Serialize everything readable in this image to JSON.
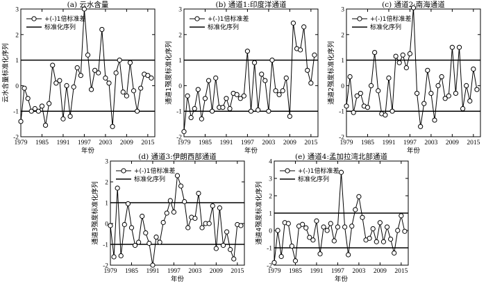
{
  "figure": {
    "x_ticks": [
      "1979",
      "1985",
      "1991",
      "1997",
      "2003",
      "2009",
      "2015"
    ],
    "x_axis_label": "年份"
  },
  "chart_data": [
    {
      "type": "line",
      "title": "(a) 云水含量",
      "ylabel": "云水含量标准化序列",
      "xlabel": "年份",
      "xlim": [
        1979,
        2017
      ],
      "ylim": [
        -2,
        3
      ],
      "y_ticks": [
        "-2",
        "-1",
        "0",
        "1",
        "2",
        "3"
      ],
      "legend": [
        "+(-)1倍标准差",
        "标准化序列"
      ],
      "legend_position": "top-left",
      "std_lines": [
        1,
        -1
      ],
      "series": [
        {
          "name": "标准化序列",
          "x": [
            1979,
            1980,
            1981,
            1982,
            1983,
            1984,
            1985,
            1986,
            1987,
            1988,
            1989,
            1990,
            1991,
            1992,
            1993,
            1994,
            1995,
            1996,
            1997,
            1998,
            1999,
            2000,
            2001,
            2002,
            2003,
            2004,
            2005,
            2006,
            2007,
            2008,
            2009,
            2010,
            2011,
            2012,
            2013,
            2014,
            2015,
            2016
          ],
          "values": [
            -1.4,
            -0.1,
            -0.5,
            -1.0,
            -0.9,
            -1.0,
            -0.8,
            -1.55,
            -0.7,
            0.8,
            0.1,
            0.2,
            -1.3,
            0.0,
            -1.2,
            -0.05,
            0.7,
            0.4,
            3.0,
            1.2,
            -0.15,
            0.6,
            0.5,
            2.2,
            0.3,
            0.1,
            -1.6,
            0.5,
            1.0,
            -0.25,
            -0.4,
            0.9,
            -0.2,
            -1.0,
            -0.1,
            0.45,
            0.4,
            0.3
          ]
        }
      ]
    },
    {
      "type": "line",
      "title": "(b) 通道1:印度洋通道",
      "ylabel": "通道1强度标准化序列",
      "xlabel": "年份",
      "xlim": [
        1979,
        2017
      ],
      "ylim": [
        -2,
        3
      ],
      "y_ticks": [
        "-2",
        "-1",
        "0",
        "1",
        "2",
        "3"
      ],
      "legend": [
        "+(-)1倍标准差",
        "标准化序列"
      ],
      "legend_position": "top-left",
      "std_lines": [
        1,
        -1
      ],
      "series": [
        {
          "name": "标准化序列",
          "x": [
            1979,
            1980,
            1981,
            1982,
            1983,
            1984,
            1985,
            1986,
            1987,
            1988,
            1989,
            1990,
            1991,
            1992,
            1993,
            1994,
            1995,
            1996,
            1997,
            1998,
            1999,
            2000,
            2001,
            2002,
            2003,
            2004,
            2005,
            2006,
            2007,
            2008,
            2009,
            2010,
            2011,
            2012,
            2013,
            2014,
            2015,
            2016
          ],
          "values": [
            -1.8,
            -0.4,
            -1.25,
            -0.9,
            -0.15,
            -1.3,
            -0.5,
            0.2,
            -1.0,
            0.3,
            -0.85,
            -0.85,
            -0.5,
            -0.9,
            -0.3,
            -0.35,
            -0.5,
            -0.4,
            1.35,
            -1.0,
            0.9,
            -0.95,
            0.45,
            0.2,
            -1.0,
            1.0,
            -0.2,
            -0.35,
            -0.2,
            0.3,
            -1.2,
            2.45,
            1.45,
            1.4,
            2.3,
            0.6,
            0.1,
            1.2
          ]
        }
      ]
    },
    {
      "type": "line",
      "title": "(c) 通道2:南海通道",
      "ylabel": "通道2强度标准化序列",
      "xlabel": "年份",
      "xlim": [
        1979,
        2017
      ],
      "ylim": [
        -2,
        3
      ],
      "y_ticks": [
        "-2",
        "-1",
        "0",
        "1",
        "2",
        "3"
      ],
      "legend": [
        "+(-)1倍标准差",
        "标准化序列"
      ],
      "legend_position": "top-left",
      "std_lines": [
        1,
        -1
      ],
      "series": [
        {
          "name": "标准化序列",
          "x": [
            1979,
            1980,
            1981,
            1982,
            1983,
            1984,
            1985,
            1986,
            1987,
            1988,
            1989,
            1990,
            1991,
            1992,
            1993,
            1994,
            1995,
            1996,
            1997,
            1998,
            1999,
            2000,
            2001,
            2002,
            2003,
            2004,
            2005,
            2006,
            2007,
            2008,
            2009,
            2010,
            2011,
            2012,
            2013,
            2014,
            2015,
            2016
          ],
          "values": [
            -0.8,
            0.35,
            -1.05,
            -0.4,
            -0.3,
            -0.8,
            -0.85,
            0.0,
            1.3,
            -0.2,
            -1.1,
            -1.15,
            0.3,
            -1.0,
            1.15,
            0.9,
            1.2,
            0.7,
            1.25,
            3.05,
            -0.3,
            -1.6,
            -0.7,
            0.6,
            -0.3,
            -1.35,
            0.0,
            0.35,
            -0.5,
            -0.4,
            1.5,
            -0.3,
            1.5,
            -0.9,
            0.0,
            -0.6,
            0.65,
            -0.15
          ]
        }
      ]
    },
    {
      "type": "line",
      "title": "(d) 通道3:伊朗西部通道",
      "ylabel": "通道3强度标准化序列",
      "xlabel": "年份",
      "xlim": [
        1979,
        2017
      ],
      "ylim": [
        -2,
        3
      ],
      "y_ticks": [
        "-2",
        "-1",
        "0",
        "1",
        "2",
        "3"
      ],
      "legend": [
        "+(-)1倍标准差",
        "标准化序列"
      ],
      "legend_position": "top-left",
      "std_lines": [
        1,
        -1
      ],
      "series": [
        {
          "name": "标准化序列",
          "x": [
            1979,
            1980,
            1981,
            1982,
            1983,
            1984,
            1985,
            1986,
            1987,
            1988,
            1989,
            1990,
            1991,
            1992,
            1993,
            1994,
            1995,
            1996,
            1997,
            1998,
            1999,
            2000,
            2001,
            2002,
            2003,
            2004,
            2005,
            2006,
            2007,
            2008,
            2009,
            2010,
            2011,
            2012,
            2013,
            2014,
            2015,
            2016
          ],
          "values": [
            -0.1,
            -1.6,
            1.7,
            -1.55,
            -0.05,
            0.95,
            -0.2,
            -1.05,
            -0.9,
            0.35,
            -0.45,
            -0.95,
            -2.0,
            -0.65,
            -0.9,
            0.05,
            0.5,
            1.1,
            0.55,
            2.3,
            1.8,
            1.05,
            -0.2,
            0.3,
            0.25,
            1.45,
            -0.2,
            0.0,
            0.0,
            0.85,
            -1.2,
            0.75,
            -1.05,
            -0.4,
            -1.25,
            -1.7,
            -0.05,
            -0.1
          ]
        }
      ]
    },
    {
      "type": "line",
      "title": "(e) 通道4:孟加拉湾北部通道",
      "ylabel": "通道4强度标准化序列",
      "xlabel": "年份",
      "xlim": [
        1979,
        2017
      ],
      "ylim": [
        -2,
        4
      ],
      "y_ticks": [
        "-2",
        "-1",
        "0",
        "1",
        "2",
        "3",
        "4"
      ],
      "legend": [
        "+(-)1倍标准差",
        "标准化序列"
      ],
      "legend_position": "top-left",
      "std_lines": [
        1,
        -1
      ],
      "series": [
        {
          "name": "标准化序列",
          "x": [
            1979,
            1980,
            1981,
            1982,
            1983,
            1984,
            1985,
            1986,
            1987,
            1988,
            1989,
            1990,
            1991,
            1992,
            1993,
            1994,
            1995,
            1996,
            1997,
            1998,
            1999,
            2000,
            2001,
            2002,
            2003,
            2004,
            2005,
            2006,
            2007,
            2008,
            2009,
            2010,
            2011,
            2012,
            2013,
            2014,
            2015,
            2016
          ],
          "values": [
            -1.85,
            0.0,
            -1.5,
            0.45,
            0.4,
            -0.9,
            -1.75,
            0.25,
            0.35,
            0.15,
            -0.4,
            -0.55,
            0.55,
            -1.35,
            0.2,
            0.0,
            0.4,
            -0.6,
            0.2,
            3.35,
            0.2,
            -1.4,
            0.25,
            1.2,
            1.95,
            0.75,
            -0.55,
            -0.45,
            0.1,
            -0.65,
            0.45,
            -0.65,
            0.2,
            -0.5,
            -1.3,
            0.0,
            0.85,
            -0.05
          ]
        }
      ]
    }
  ]
}
